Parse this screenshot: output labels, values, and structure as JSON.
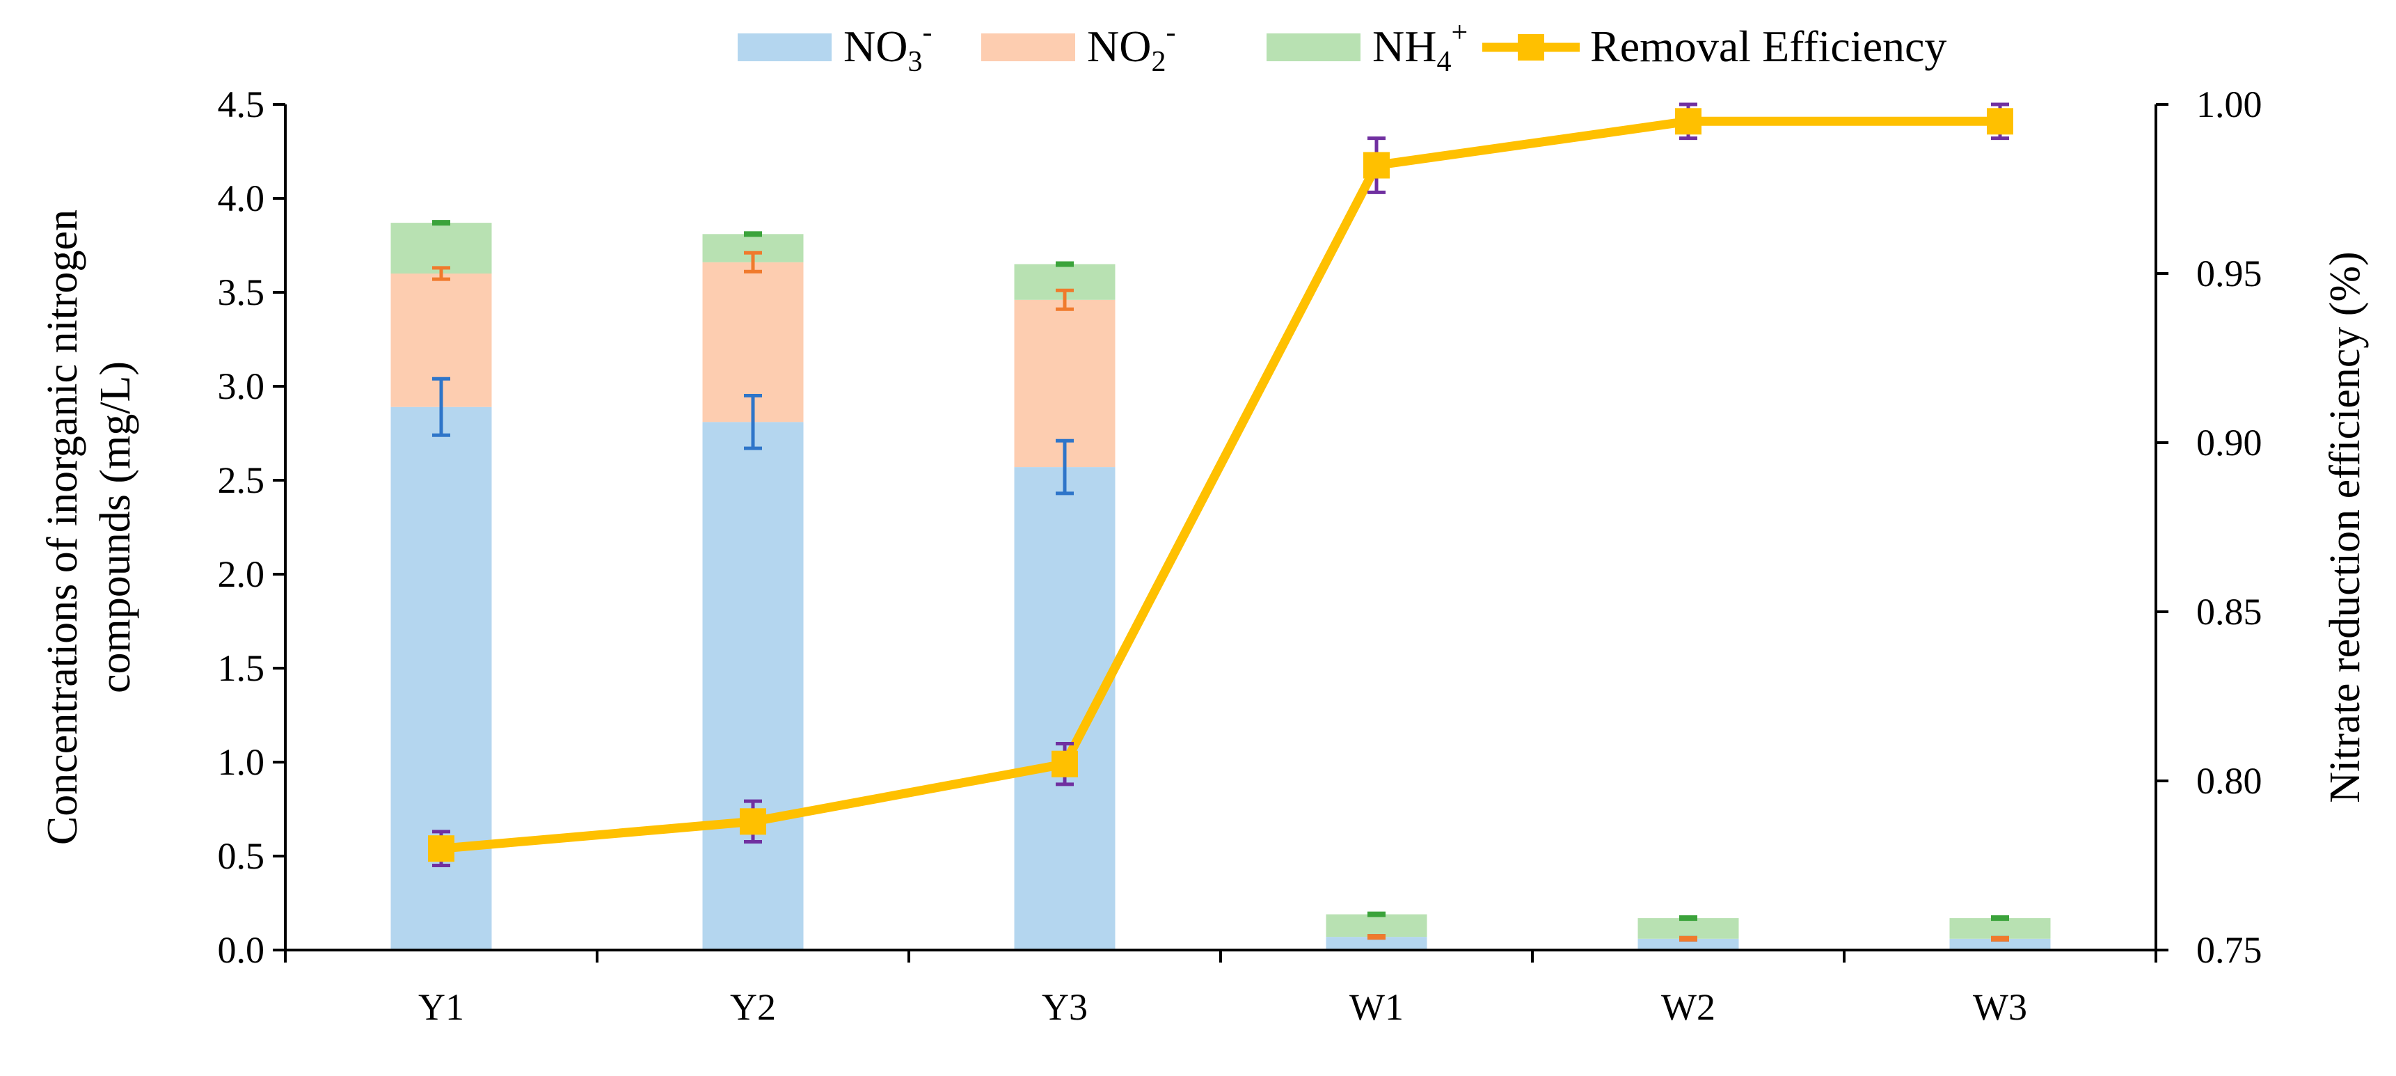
{
  "chart_data": {
    "type": "bar",
    "subtype": "stacked-bar-with-line",
    "categories": [
      "Y1",
      "Y2",
      "Y3",
      "W1",
      "W2",
      "W3"
    ],
    "series": [
      {
        "name": "NO3-",
        "label_main": "NO",
        "label_sub": "3",
        "label_sup": "-",
        "color": "#b4d6ef",
        "error_color": "#2e75c9",
        "values": [
          2.89,
          2.81,
          2.57,
          0.07,
          0.06,
          0.06
        ],
        "errors": [
          0.15,
          0.14,
          0.14,
          0.0,
          0.0,
          0.0
        ]
      },
      {
        "name": "NO2-",
        "label_main": "NO",
        "label_sub": "2",
        "label_sup": "-",
        "color": "#fdcdb0",
        "error_color": "#f07a2c",
        "values": [
          0.71,
          0.85,
          0.89,
          0.0,
          0.0,
          0.0
        ],
        "errors": [
          0.03,
          0.05,
          0.05,
          0.01,
          0.01,
          0.01
        ]
      },
      {
        "name": "NH4+",
        "label_main": "NH",
        "label_sub": "4",
        "label_sup": "+",
        "color": "#b8e1b2",
        "error_color": "#3ba33b",
        "values": [
          0.27,
          0.15,
          0.19,
          0.12,
          0.11,
          0.11
        ],
        "errors": [
          0.01,
          0.01,
          0.01,
          0.01,
          0.01,
          0.01
        ]
      }
    ],
    "line_series": {
      "name": "Removal Efficiency",
      "label": "Removal Efficiency",
      "color": "#ffc000",
      "error_color": "#7030a0",
      "axis": "right",
      "values": [
        0.78,
        0.788,
        0.805,
        0.982,
        0.995,
        0.995
      ],
      "errors": [
        0.005,
        0.006,
        0.006,
        0.008,
        0.005,
        0.005
      ]
    },
    "title": "",
    "xlabel": "",
    "ylabel_lines": [
      "Concentrations of inorganic nitrogen",
      "compounds (mg/L)"
    ],
    "ylabel_right": "Nitrate reduction efficiency (%)",
    "ylim": [
      0,
      4.5
    ],
    "ylim_right": [
      0.75,
      1.0
    ],
    "yticks": [
      "0.0",
      "0.5",
      "1.0",
      "1.5",
      "2.0",
      "2.5",
      "3.0",
      "3.5",
      "4.0",
      "4.5"
    ],
    "yticks_right": [
      "0.75",
      "0.80",
      "0.85",
      "0.90",
      "0.95",
      "1.00"
    ],
    "grid": false,
    "legend_position": "top"
  }
}
